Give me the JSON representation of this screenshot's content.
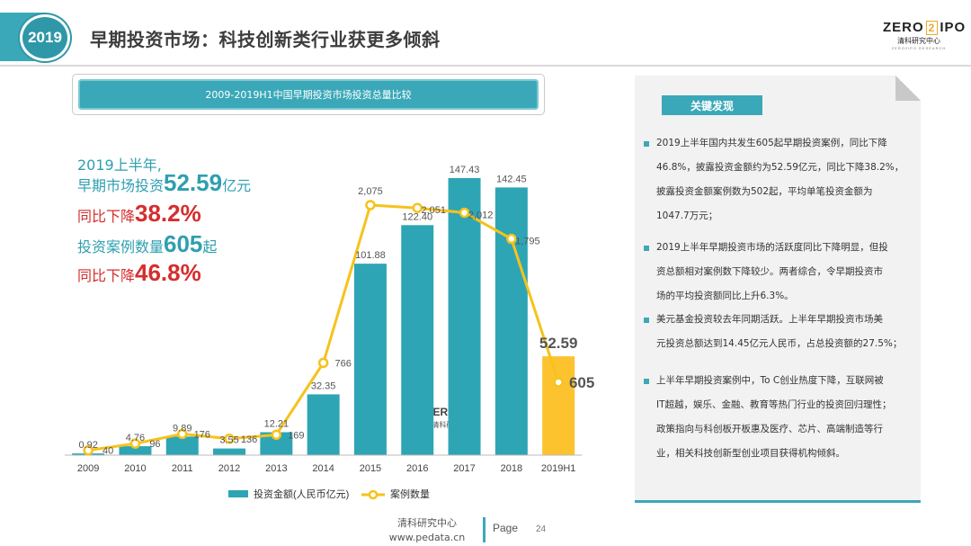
{
  "header": {
    "year_badge": "2019",
    "title": "早期投资市场：科技创新类行业获更多倾斜",
    "logo_main_left": "ZERO",
    "logo_main_box": "2",
    "logo_main_right": "IPO",
    "logo_sub": "清科研究中心",
    "logo_tiny": "ZERO2IPO RESEARCH"
  },
  "chart_title": "2009-2019H1中国早期投资市场投资总量比较",
  "highlights": {
    "line1": "2019上半年,",
    "line2_prefix": "早期市场投资",
    "line2_value": "52.59",
    "line2_suffix": "亿元",
    "line3_prefix": "同比下降",
    "line3_value": "38.2%",
    "line4_prefix": "投资案例数量",
    "line4_value": "605",
    "line4_suffix": "起",
    "line5_prefix": "同比下降",
    "line5_value": "46.8%"
  },
  "chart_data": {
    "type": "bar",
    "categories": [
      "2009",
      "2010",
      "2011",
      "2012",
      "2013",
      "2014",
      "2015",
      "2016",
      "2017",
      "2018",
      "2019H1"
    ],
    "series": [
      {
        "name": "投资金额(人民币亿元)",
        "type": "bar",
        "values": [
          0.92,
          4.76,
          9.89,
          3.55,
          12.21,
          32.35,
          101.88,
          122.4,
          147.43,
          142.45,
          52.59
        ],
        "labels": [
          "0.92",
          "4.76",
          "9.89",
          "3.55",
          "12.21",
          "32.35",
          "101.88",
          "122.40",
          "147.43",
          "142.45",
          "52.59"
        ]
      },
      {
        "name": "案例数量",
        "type": "line",
        "values": [
          40,
          96,
          176,
          136,
          169,
          766,
          2075,
          2051,
          2012,
          1795,
          605
        ],
        "labels": [
          "40",
          "96",
          "176",
          "136",
          "169",
          "766",
          "2,075",
          "2,051",
          "2,012",
          "1,795",
          "605"
        ]
      }
    ],
    "bar_color": "#2ea5b5",
    "highlight_bar_color": "#fdc32e",
    "line_color": "#f6c21c",
    "legend_position": "bottom",
    "watermark": {
      "main_left": "ZERO",
      "main_box": "2",
      "main_right": "IPO",
      "sub": "清科研究中心"
    }
  },
  "panel": {
    "heading": "关键发现",
    "findings": [
      [
        "2019上半年国内共发生605起早期投资案例，同比下降",
        "46.8%，披露投资金额约为52.59亿元，同比下降38.2%，",
        "披露投资金额案例数为502起，平均单笔投资金额为",
        "1047.7万元；"
      ],
      [
        "2019上半年早期投资市场的活跃度同比下降明显，但投",
        "资总额相对案例数下降较少。两者综合，令早期投资市",
        "场的平均投资额同比上升6.3%。"
      ],
      [
        "美元基金投资较去年同期活跃。上半年早期投资市场美",
        "元投资总额达到14.45亿元人民币，占总投资额的27.5%；"
      ],
      [
        "上半年早期投资案例中，To C创业热度下降，互联网被",
        "IT超越，娱乐、金融、教育等热门行业的投资回归理性；",
        "政策指向与科创板开板惠及医疗、芯片、高端制造等行",
        "业，相关科技创新型创业项目获得机构倾斜。"
      ]
    ]
  },
  "footer": {
    "org": "清科研究中心",
    "url": "www.pedata.cn",
    "page_label": "Page",
    "page_number": "24"
  }
}
